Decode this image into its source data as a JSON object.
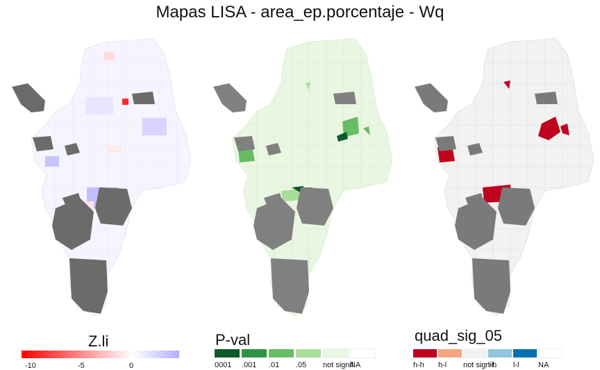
{
  "title": "Mapas LISA - area_ep.porcentaje - Wq",
  "maps": [
    {
      "name": "z-li-map",
      "base": "#f6f4ff",
      "missing": "#6b6b6b"
    },
    {
      "name": "p-val-map",
      "base": "#e9f6e2",
      "missing": "#808080"
    },
    {
      "name": "quad-map",
      "base": "#f2f2f2",
      "missing": "#7a7a7a"
    }
  ],
  "zli_legend": {
    "title": "Z.li",
    "gradient": [
      "#ff0000",
      "#ffffff",
      "#b0b0ff"
    ],
    "ticks": [
      "-10",
      "-5",
      "0"
    ]
  },
  "pval_legend": {
    "title": "P-val",
    "items": [
      {
        "label": "0001",
        "color": "#0b5a2a"
      },
      {
        "label": ".001",
        "color": "#2e9444"
      },
      {
        "label": ".01",
        "color": "#66bd63"
      },
      {
        "label": ".05",
        "color": "#a8dd9a"
      },
      {
        "label": "not signif.",
        "color": "#e9f6e2"
      },
      {
        "label": "NA",
        "color": "#ffffff"
      }
    ]
  },
  "quad_legend": {
    "title": "quad_sig_05",
    "items": [
      {
        "label": "h-h",
        "color": "#c0001f"
      },
      {
        "label": "h-l",
        "color": "#f4a582"
      },
      {
        "label": "not signif.",
        "color": "#f2f2f2"
      },
      {
        "label": "l-h",
        "color": "#92c5de"
      },
      {
        "label": "l-l",
        "color": "#0571b0"
      },
      {
        "label": "NA",
        "color": "#ffffff"
      }
    ]
  }
}
